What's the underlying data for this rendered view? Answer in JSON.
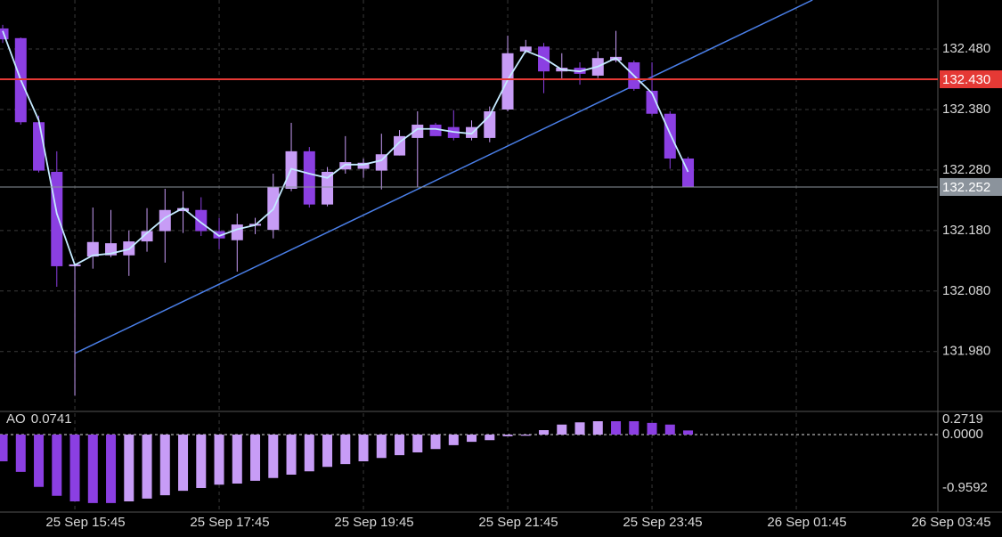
{
  "chart_data": [
    {
      "type": "candlestick",
      "categories": [
        null,
        null,
        null,
        null,
        null,
        null,
        null,
        null,
        null,
        null,
        null,
        null,
        null,
        null,
        null,
        null,
        null,
        null,
        null,
        null,
        null,
        null,
        null,
        null,
        null,
        null,
        null,
        null,
        null,
        null,
        null,
        null,
        null,
        null,
        null,
        null,
        null,
        null,
        null
      ],
      "open": [
        132.514,
        132.498,
        132.359,
        132.277,
        132.121,
        132.137,
        132.139,
        132.139,
        132.162,
        132.179,
        132.212,
        132.214,
        132.179,
        132.164,
        132.188,
        132.181,
        132.249,
        132.311,
        132.223,
        132.281,
        132.282,
        132.279,
        132.304,
        132.333,
        132.355,
        132.351,
        132.333,
        132.333,
        132.38,
        132.476,
        132.484,
        132.443,
        132.449,
        132.436,
        132.461,
        132.458,
        132.411,
        132.373,
        132.299
      ],
      "high": [
        132.52,
        132.499,
        132.37,
        132.311,
        132.126,
        132.218,
        132.214,
        132.18,
        132.217,
        132.249,
        132.245,
        132.235,
        132.201,
        132.208,
        132.201,
        132.274,
        132.358,
        132.318,
        132.285,
        132.336,
        132.299,
        132.34,
        132.346,
        132.377,
        132.358,
        132.379,
        132.362,
        132.385,
        132.502,
        132.495,
        132.49,
        132.473,
        132.458,
        132.476,
        132.51,
        132.461,
        132.458,
        132.377,
        132.302
      ],
      "low": [
        132.49,
        132.355,
        132.276,
        132.087,
        131.907,
        132.117,
        132.136,
        132.105,
        132.145,
        132.127,
        132.176,
        132.171,
        132.149,
        132.112,
        132.174,
        132.167,
        132.245,
        132.218,
        132.22,
        132.274,
        132.267,
        132.248,
        132.304,
        132.252,
        132.336,
        132.329,
        132.329,
        132.326,
        132.377,
        132.473,
        132.407,
        132.429,
        132.421,
        132.432,
        132.458,
        132.411,
        132.37,
        132.282,
        132.252
      ],
      "close": [
        132.496,
        132.359,
        132.279,
        132.121,
        132.124,
        132.161,
        132.159,
        132.162,
        132.179,
        132.214,
        132.217,
        132.179,
        132.167,
        132.19,
        132.191,
        132.252,
        132.311,
        132.223,
        132.277,
        132.293,
        132.292,
        132.306,
        132.336,
        132.355,
        132.336,
        132.333,
        132.351,
        132.377,
        132.473,
        132.484,
        132.443,
        132.449,
        132.439,
        132.465,
        132.467,
        132.414,
        132.373,
        132.299,
        132.252
      ],
      "up_color": "#c79cf6",
      "down_color": "#8b3fe2",
      "series": [
        {
          "color": "#c4eaff",
          "values": [
            132.51,
            132.429,
            132.362,
            132.208,
            132.123,
            132.139,
            132.142,
            132.149,
            132.176,
            132.201,
            132.217,
            132.193,
            132.171,
            132.182,
            132.189,
            132.215,
            132.282,
            132.274,
            132.267,
            132.289,
            132.289,
            132.296,
            132.326,
            132.348,
            132.348,
            132.343,
            132.34,
            132.37,
            132.429,
            132.477,
            132.465,
            132.446,
            132.443,
            132.451,
            132.465,
            132.436,
            132.407,
            132.34,
            132.277
          ]
        }
      ],
      "trendline": {
        "x": [
          4,
          44.9
        ],
        "y": [
          131.977,
          132.561
        ],
        "color": "#4a7fe8"
      },
      "hlines": [
        {
          "value": 132.43,
          "label": "132.430",
          "color": "#e53935"
        },
        {
          "value": 132.252,
          "label": "132.252",
          "color": "#8b939c"
        }
      ],
      "xlim": [
        -0.15,
        51.85
      ],
      "ylim": [
        131.881,
        132.561
      ],
      "yticks": [
        {
          "value": 131.98,
          "label": "131.980"
        },
        {
          "value": 132.08,
          "label": "132.080"
        },
        {
          "value": 132.18,
          "label": "132.180"
        },
        {
          "value": 132.28,
          "label": "132.280"
        },
        {
          "value": 132.38,
          "label": "132.380"
        },
        {
          "value": 132.48,
          "label": "132.480"
        }
      ],
      "grid": true
    },
    {
      "type": "bar",
      "title": "AO",
      "categories": [
        null,
        null,
        null,
        null,
        null,
        null,
        null,
        null,
        null,
        null,
        null,
        null,
        null,
        null,
        null,
        null,
        null,
        null,
        null,
        null,
        null,
        null,
        null,
        null,
        null,
        null,
        null,
        null,
        null,
        null,
        null,
        null,
        null,
        null,
        null,
        null,
        null,
        null,
        null
      ],
      "values": [
        -0.48,
        -0.67,
        -0.94,
        -1.1,
        -1.2,
        -1.23,
        -1.23,
        -1.2,
        -1.15,
        -1.09,
        -1.01,
        -0.96,
        -0.9,
        -0.88,
        -0.83,
        -0.78,
        -0.72,
        -0.66,
        -0.58,
        -0.53,
        -0.48,
        -0.42,
        -0.37,
        -0.32,
        -0.26,
        -0.19,
        -0.13,
        -0.1,
        -0.03,
        -0.02,
        0.08,
        0.18,
        0.22,
        0.24,
        0.24,
        0.24,
        0.21,
        0.18,
        0.0741
      ],
      "up_color": "#c79cf6",
      "down_color": "#8b3fe2",
      "xlim": [
        -0.15,
        51.85
      ],
      "ylim": [
        -1.344,
        0.416
      ],
      "yticks": [
        -0.9592,
        {
          "value": 0,
          "label": "0.0000"
        },
        0.2719
      ],
      "xticks": [
        {
          "value": 4,
          "label": "25 Sep 15:45"
        },
        {
          "value": 12,
          "label": "25 Sep 17:45"
        },
        {
          "value": 20,
          "label": "25 Sep 19:45"
        },
        {
          "value": 28,
          "label": "25 Sep 21:45"
        },
        {
          "value": 36,
          "label": "25 Sep 23:45"
        },
        {
          "value": 44,
          "label": "26 Sep 01:45"
        },
        {
          "value": 52,
          "label": "26 Sep 03:45"
        }
      ]
    }
  ]
}
